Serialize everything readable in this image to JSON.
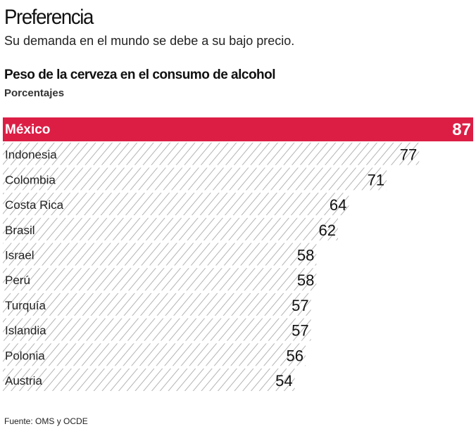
{
  "title": "Preferencia",
  "subtitle": "Su demanda en el mundo se debe a su bajo precio.",
  "source": "Fuente: OMS y OCDE",
  "colors": {
    "highlight": "#dc1e45",
    "hatch": "#b4b4b4"
  },
  "chart_data": {
    "type": "bar",
    "orientation": "horizontal",
    "title": "Peso de la cerveza en el consumo de alcohol",
    "subtitle": "Porcentajes",
    "categories": [
      "México",
      "Indonesia",
      "Colombia",
      "Costa Rica",
      "Brasil",
      "Israel",
      "Perú",
      "Turquía",
      "Islandia",
      "Polonia",
      "Austria"
    ],
    "values": [
      87,
      77,
      71,
      64,
      62,
      58,
      58,
      57,
      57,
      56,
      54
    ],
    "highlight": "México",
    "xlim": [
      0,
      87
    ]
  }
}
